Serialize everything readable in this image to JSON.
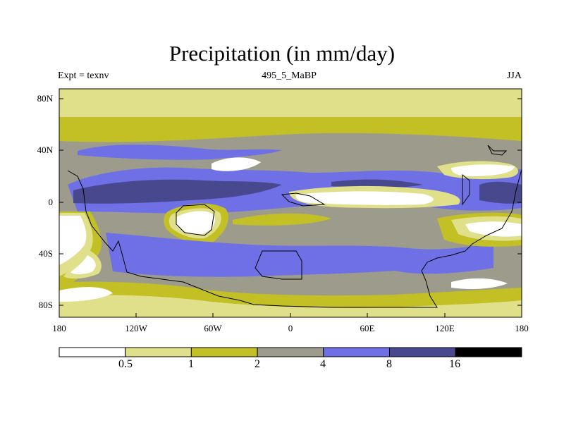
{
  "title": "Precipitation (in mm/day)",
  "subtitle_left": "Expt = texnv",
  "subtitle_center": "495_5_MaBP",
  "subtitle_right": "JJA",
  "lat_labels": [
    "80N",
    "40N",
    "0",
    "40S",
    "80S"
  ],
  "lon_labels": [
    "180",
    "120W",
    "60W",
    "0",
    "60E",
    "120E",
    "180"
  ],
  "colorbar": {
    "colors": [
      "#ffffff",
      "#e0df8a",
      "#c2c025",
      "#9d9c8c",
      "#7070e6",
      "#48488e",
      "#000000"
    ],
    "boundaries": [
      "0.5",
      "1",
      "2",
      "4",
      "8",
      "16"
    ]
  },
  "chart_data": {
    "type": "contour-map",
    "title": "Precipitation (in mm/day)",
    "units": "mm/day",
    "experiment": "texnv",
    "period": "495_5_MaBP",
    "season": "JJA",
    "lon_range": [
      -180,
      180
    ],
    "lat_range": [
      -90,
      90
    ],
    "levels": [
      0.5,
      1,
      2,
      4,
      8,
      16
    ]
  }
}
